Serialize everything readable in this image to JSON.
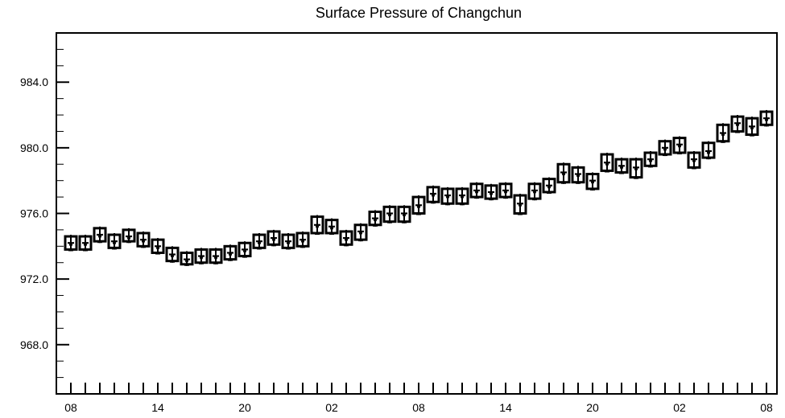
{
  "chart_data": {
    "type": "box",
    "title": "Surface Pressure of Changchun",
    "xlabel": "",
    "ylabel": "",
    "ylim": [
      965.0,
      987.0
    ],
    "y_ticks": [
      "984.0",
      "980.0",
      "976.0",
      "972.0",
      "968.0"
    ],
    "y_tick_values": [
      984.0,
      980.0,
      976.0,
      972.0,
      968.0
    ],
    "x_tick_labels": [
      "08",
      "14",
      "20",
      "02",
      "08",
      "14",
      "20",
      "02",
      "08"
    ],
    "x_tick_indices": [
      0,
      6,
      12,
      18,
      24,
      30,
      36,
      42,
      48
    ],
    "grid": false,
    "legend": "none",
    "series": [
      {
        "hours": [
          0,
          1,
          2,
          3,
          4,
          5,
          6,
          7,
          8,
          9,
          10,
          11,
          12,
          13,
          14,
          15,
          16,
          17,
          18,
          19,
          20,
          21,
          22,
          23,
          24,
          25,
          26,
          27,
          28,
          29,
          30,
          31,
          32,
          33,
          34,
          35,
          36,
          37,
          38,
          39,
          40,
          41,
          42,
          43,
          44,
          45,
          46,
          47,
          48
        ],
        "median": [
          974.2,
          974.2,
          974.7,
          974.3,
          974.6,
          974.4,
          974.0,
          973.5,
          973.2,
          973.4,
          973.4,
          973.6,
          973.8,
          974.3,
          974.5,
          974.3,
          974.4,
          975.3,
          975.2,
          974.5,
          974.9,
          975.7,
          976.0,
          976.0,
          976.5,
          977.2,
          977.1,
          977.1,
          977.4,
          977.3,
          977.4,
          976.6,
          977.4,
          977.7,
          978.5,
          978.4,
          978.0,
          979.1,
          978.9,
          978.8,
          979.3,
          980.0,
          980.2,
          979.3,
          979.8,
          980.9,
          981.5,
          981.3,
          981.8
        ],
        "box_low": [
          973.8,
          973.8,
          974.3,
          973.9,
          974.3,
          974.0,
          973.6,
          973.1,
          972.9,
          973.0,
          973.0,
          973.2,
          973.4,
          973.9,
          974.1,
          973.9,
          974.0,
          974.8,
          974.8,
          974.1,
          974.4,
          975.3,
          975.5,
          975.5,
          976.0,
          976.7,
          976.6,
          976.6,
          977.0,
          976.9,
          977.0,
          976.0,
          976.9,
          977.3,
          977.9,
          977.9,
          977.5,
          978.6,
          978.5,
          978.2,
          978.9,
          979.6,
          979.7,
          978.8,
          979.4,
          980.4,
          981.0,
          980.8,
          981.4
        ],
        "box_high": [
          974.6,
          974.6,
          975.1,
          974.7,
          975.0,
          974.8,
          974.4,
          973.9,
          973.6,
          973.8,
          973.8,
          974.0,
          974.2,
          974.7,
          974.9,
          974.7,
          974.8,
          975.8,
          975.6,
          974.9,
          975.3,
          976.1,
          976.4,
          976.4,
          977.0,
          977.6,
          977.5,
          977.5,
          977.8,
          977.7,
          977.8,
          977.1,
          977.8,
          978.1,
          979.0,
          978.8,
          978.4,
          979.6,
          979.3,
          979.3,
          979.7,
          980.4,
          980.6,
          979.7,
          980.3,
          981.4,
          981.9,
          981.8,
          982.2
        ],
        "whisker_low": [
          973.7,
          973.7,
          974.2,
          973.8,
          974.2,
          973.9,
          973.5,
          973.0,
          972.8,
          972.9,
          972.9,
          973.1,
          973.3,
          973.8,
          974.0,
          973.8,
          973.9,
          974.7,
          974.7,
          974.0,
          974.3,
          975.2,
          975.4,
          975.4,
          975.9,
          976.6,
          976.5,
          976.5,
          976.9,
          976.8,
          976.9,
          975.9,
          976.8,
          977.2,
          977.8,
          977.8,
          977.4,
          978.5,
          978.4,
          978.1,
          978.8,
          979.5,
          979.6,
          978.7,
          979.3,
          980.3,
          980.9,
          980.7,
          981.3
        ],
        "whisker_high": [
          974.7,
          974.7,
          975.2,
          974.8,
          975.1,
          974.9,
          974.5,
          974.0,
          973.7,
          973.9,
          973.9,
          974.1,
          974.3,
          974.8,
          975.0,
          974.8,
          974.9,
          975.9,
          975.7,
          975.0,
          975.4,
          976.2,
          976.5,
          976.5,
          977.1,
          977.7,
          977.6,
          977.6,
          977.9,
          977.8,
          977.9,
          977.2,
          977.9,
          978.2,
          979.1,
          978.9,
          978.5,
          979.7,
          979.4,
          979.4,
          979.8,
          980.5,
          980.7,
          979.8,
          980.4,
          981.5,
          982.0,
          981.9,
          982.3
        ]
      }
    ]
  }
}
